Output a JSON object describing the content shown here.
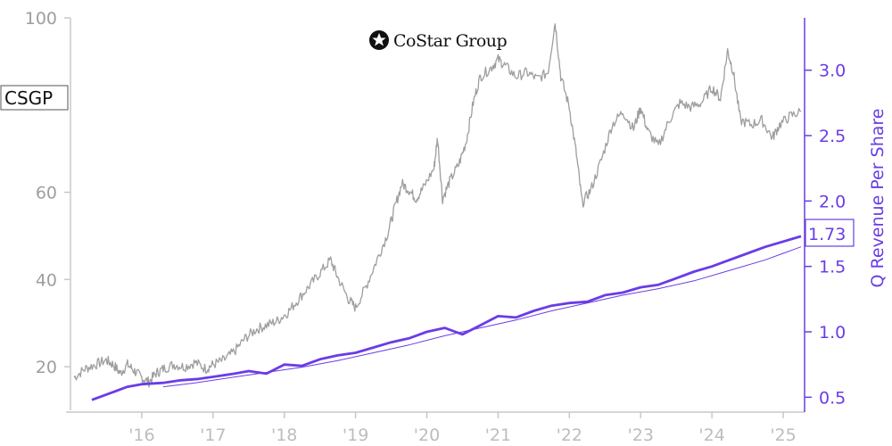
{
  "logo": {
    "text": "CoStar Group",
    "mark": "costar-star-mark"
  },
  "ticker": "CSGP",
  "colors": {
    "price": "#9e9e9e",
    "revenue": "#6a3ce6",
    "left_axis": "#9e9e9e",
    "right_axis": "#6a3ce6",
    "x_axis": "#bdbdbd"
  },
  "chart_data": {
    "type": "line",
    "title": "",
    "x_ticks": [
      "'16",
      "'17",
      "'18",
      "'19",
      "'20",
      "'21",
      "'22",
      "'23",
      "'24",
      "'25"
    ],
    "x_range": [
      2015.0,
      2025.3
    ],
    "left_axis": {
      "ticks": [
        "20",
        "40",
        "60",
        "100"
      ],
      "range": [
        10,
        100
      ]
    },
    "right_axis": {
      "label": "Q Revenue Per Share",
      "ticks": [
        "0.5",
        "1.0",
        "1.5",
        "2.0",
        "2.5",
        "3.0"
      ],
      "range": [
        0.4,
        3.4
      ]
    },
    "last_value_label": "1.73",
    "series": [
      {
        "name": "CSGP",
        "axis": "left",
        "style": "price",
        "points": [
          [
            2015.05,
            17.5
          ],
          [
            2015.2,
            19.5
          ],
          [
            2015.35,
            20.5
          ],
          [
            2015.5,
            21.5
          ],
          [
            2015.6,
            20.5
          ],
          [
            2015.7,
            18.5
          ],
          [
            2015.8,
            20.5
          ],
          [
            2015.9,
            19.0
          ],
          [
            2016.0,
            17.5
          ],
          [
            2016.1,
            16.5
          ],
          [
            2016.2,
            18.5
          ],
          [
            2016.3,
            19.5
          ],
          [
            2016.45,
            20.5
          ],
          [
            2016.6,
            20.0
          ],
          [
            2016.75,
            21.0
          ],
          [
            2016.9,
            19.5
          ],
          [
            2017.0,
            20.5
          ],
          [
            2017.15,
            21.5
          ],
          [
            2017.3,
            23.5
          ],
          [
            2017.45,
            26.5
          ],
          [
            2017.6,
            28.5
          ],
          [
            2017.75,
            29.5
          ],
          [
            2017.9,
            30.5
          ],
          [
            2018.05,
            32.5
          ],
          [
            2018.2,
            35.5
          ],
          [
            2018.35,
            38.5
          ],
          [
            2018.5,
            41.5
          ],
          [
            2018.65,
            44.5
          ],
          [
            2018.75,
            40.5
          ],
          [
            2018.9,
            35.5
          ],
          [
            2019.0,
            33.5
          ],
          [
            2019.15,
            38.5
          ],
          [
            2019.3,
            44.5
          ],
          [
            2019.45,
            50.5
          ],
          [
            2019.55,
            56.5
          ],
          [
            2019.65,
            62.0
          ],
          [
            2019.75,
            60.5
          ],
          [
            2019.85,
            58.5
          ],
          [
            2019.95,
            61.0
          ],
          [
            2020.1,
            65.5
          ],
          [
            2020.15,
            72.5
          ],
          [
            2020.22,
            58.5
          ],
          [
            2020.32,
            62.5
          ],
          [
            2020.45,
            66.5
          ],
          [
            2020.55,
            71.5
          ],
          [
            2020.65,
            80.5
          ],
          [
            2020.75,
            86.5
          ],
          [
            2020.9,
            88.5
          ],
          [
            2021.0,
            90.5
          ],
          [
            2021.1,
            89.0
          ],
          [
            2021.25,
            86.5
          ],
          [
            2021.4,
            87.5
          ],
          [
            2021.55,
            86.0
          ],
          [
            2021.7,
            87.5
          ],
          [
            2021.8,
            99.0
          ],
          [
            2021.88,
            86.5
          ],
          [
            2022.0,
            79.5
          ],
          [
            2022.1,
            68.5
          ],
          [
            2022.18,
            57.5
          ],
          [
            2022.3,
            60.5
          ],
          [
            2022.45,
            67.5
          ],
          [
            2022.6,
            75.5
          ],
          [
            2022.75,
            78.5
          ],
          [
            2022.9,
            74.5
          ],
          [
            2023.0,
            79.5
          ],
          [
            2023.1,
            74.0
          ],
          [
            2023.25,
            70.5
          ],
          [
            2023.4,
            76.5
          ],
          [
            2023.55,
            80.5
          ],
          [
            2023.7,
            79.5
          ],
          [
            2023.85,
            80.5
          ],
          [
            2024.0,
            84.0
          ],
          [
            2024.12,
            81.5
          ],
          [
            2024.22,
            92.5
          ],
          [
            2024.3,
            87.5
          ],
          [
            2024.4,
            76.5
          ],
          [
            2024.55,
            75.5
          ],
          [
            2024.7,
            76.5
          ],
          [
            2024.85,
            72.5
          ],
          [
            2024.95,
            75.5
          ],
          [
            2025.1,
            77.5
          ],
          [
            2025.25,
            78.5
          ]
        ]
      },
      {
        "name": "Q Revenue Per Share",
        "axis": "right",
        "style": "thick",
        "points": [
          [
            2015.3,
            0.48
          ],
          [
            2015.5,
            0.52
          ],
          [
            2015.8,
            0.58
          ],
          [
            2016.0,
            0.6
          ],
          [
            2016.3,
            0.61
          ],
          [
            2016.55,
            0.63
          ],
          [
            2016.8,
            0.64
          ],
          [
            2017.05,
            0.66
          ],
          [
            2017.3,
            0.68
          ],
          [
            2017.5,
            0.7
          ],
          [
            2017.75,
            0.68
          ],
          [
            2018.0,
            0.75
          ],
          [
            2018.25,
            0.74
          ],
          [
            2018.5,
            0.79
          ],
          [
            2018.75,
            0.82
          ],
          [
            2019.0,
            0.84
          ],
          [
            2019.25,
            0.88
          ],
          [
            2019.5,
            0.92
          ],
          [
            2019.75,
            0.95
          ],
          [
            2020.0,
            1.0
          ],
          [
            2020.25,
            1.03
          ],
          [
            2020.5,
            0.98
          ],
          [
            2020.75,
            1.05
          ],
          [
            2021.0,
            1.12
          ],
          [
            2021.25,
            1.11
          ],
          [
            2021.5,
            1.16
          ],
          [
            2021.75,
            1.2
          ],
          [
            2022.0,
            1.22
          ],
          [
            2022.25,
            1.23
          ],
          [
            2022.5,
            1.28
          ],
          [
            2022.75,
            1.3
          ],
          [
            2023.0,
            1.34
          ],
          [
            2023.25,
            1.36
          ],
          [
            2023.5,
            1.41
          ],
          [
            2023.75,
            1.46
          ],
          [
            2024.0,
            1.5
          ],
          [
            2024.25,
            1.55
          ],
          [
            2024.5,
            1.6
          ],
          [
            2024.75,
            1.65
          ],
          [
            2025.0,
            1.69
          ],
          [
            2025.25,
            1.73
          ]
        ]
      },
      {
        "name": "trend",
        "axis": "right",
        "style": "thin",
        "points": [
          [
            2016.3,
            0.58
          ],
          [
            2016.75,
            0.61
          ],
          [
            2017.25,
            0.65
          ],
          [
            2017.75,
            0.69
          ],
          [
            2018.25,
            0.73
          ],
          [
            2018.75,
            0.78
          ],
          [
            2019.25,
            0.84
          ],
          [
            2019.75,
            0.9
          ],
          [
            2020.25,
            0.97
          ],
          [
            2020.75,
            1.03
          ],
          [
            2021.25,
            1.09
          ],
          [
            2021.75,
            1.16
          ],
          [
            2022.25,
            1.22
          ],
          [
            2022.75,
            1.28
          ],
          [
            2023.25,
            1.33
          ],
          [
            2023.75,
            1.39
          ],
          [
            2024.25,
            1.47
          ],
          [
            2024.75,
            1.55
          ],
          [
            2025.0,
            1.6
          ],
          [
            2025.25,
            1.65
          ]
        ]
      }
    ]
  }
}
